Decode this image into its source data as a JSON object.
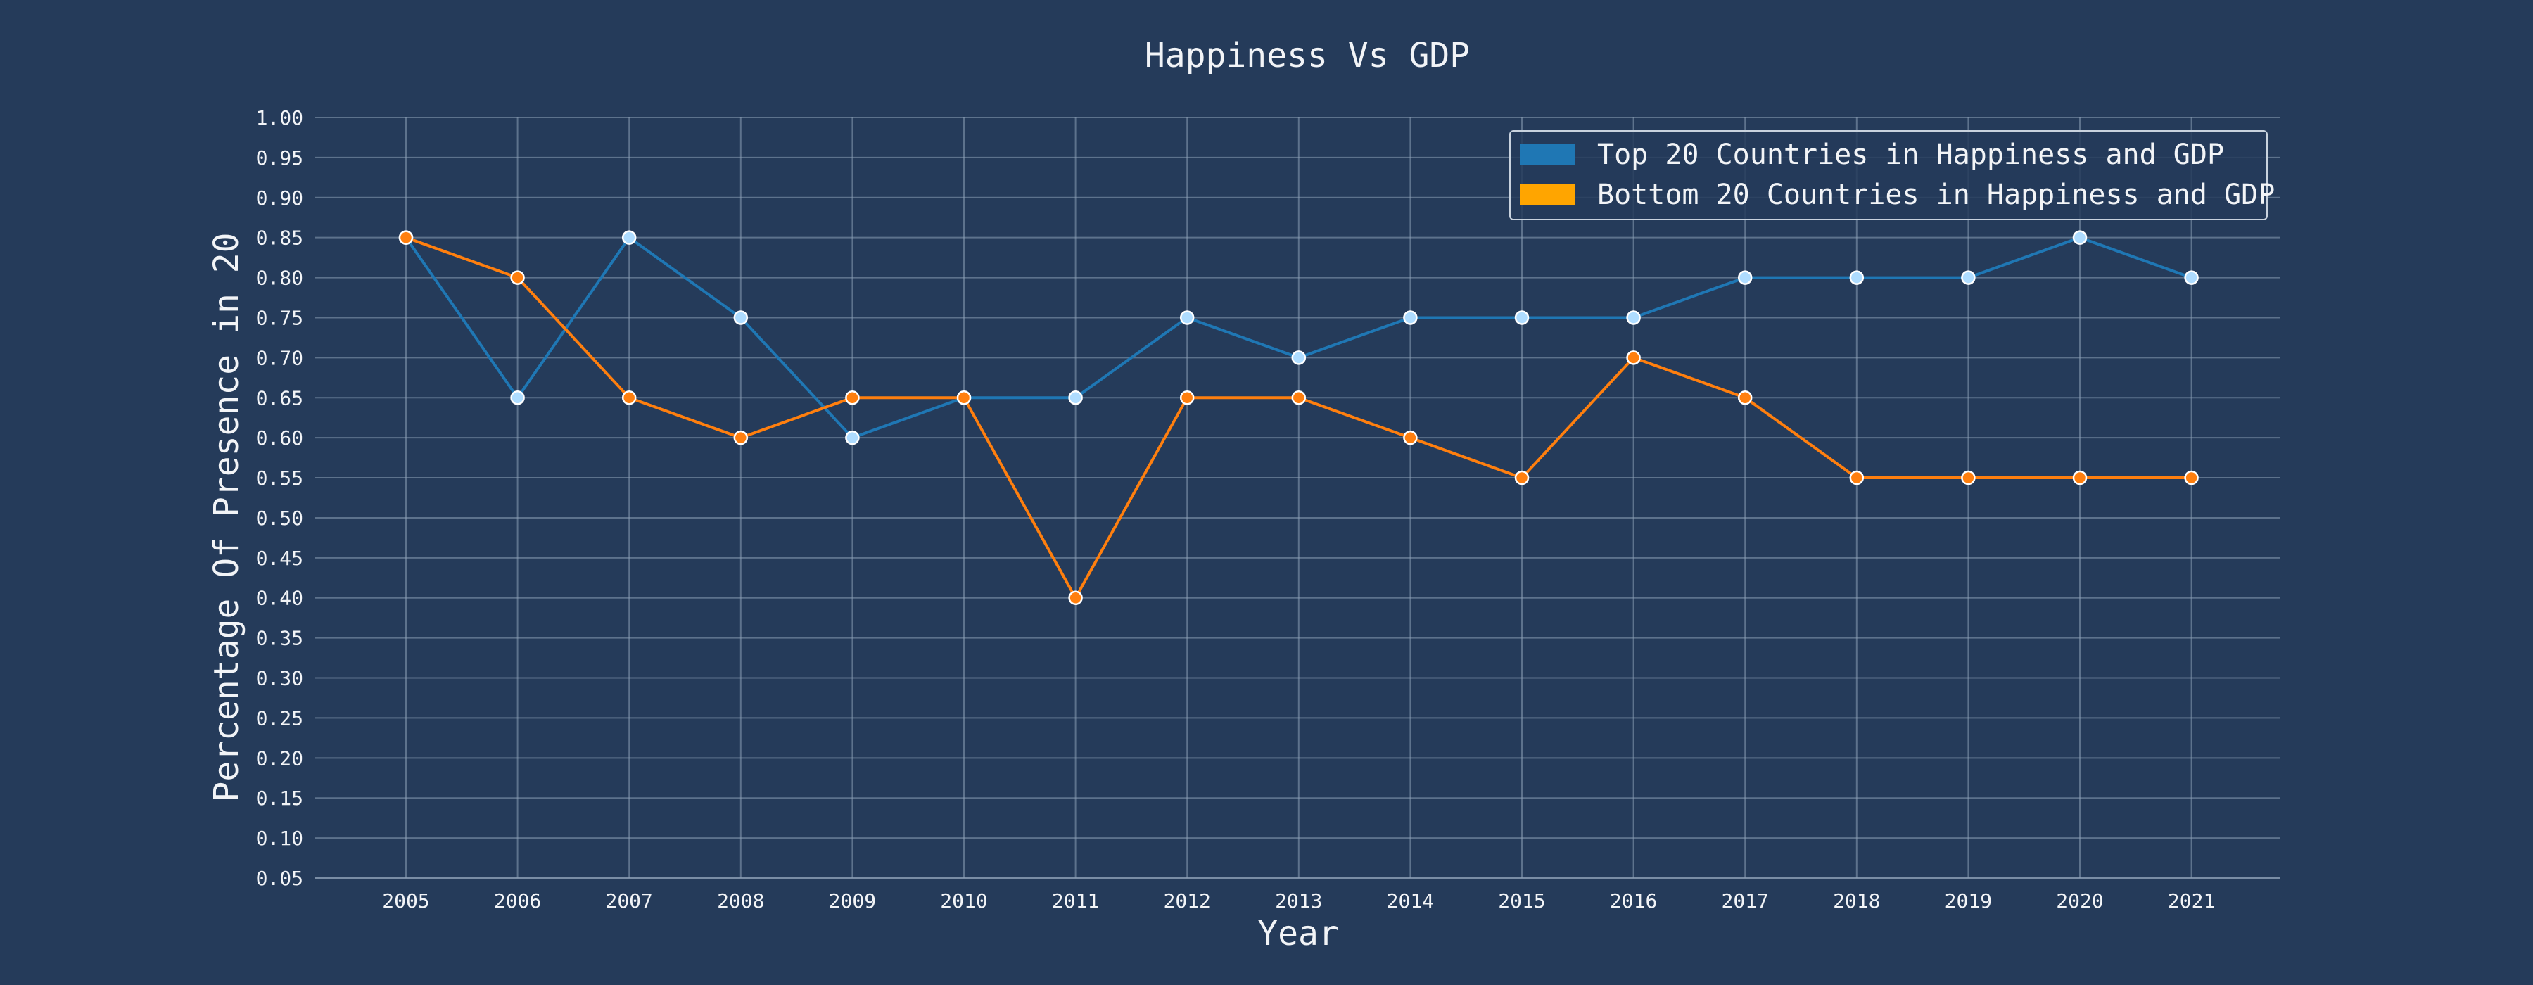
{
  "chart_data": {
    "type": "line",
    "title": "Happiness Vs GDP",
    "xlabel": "Year",
    "ylabel": "Percentage Of Presence in 20",
    "x": [
      "2005",
      "2006",
      "2007",
      "2008",
      "2009",
      "2010",
      "2011",
      "2012",
      "2013",
      "2014",
      "2015",
      "2016",
      "2017",
      "2018",
      "2019",
      "2020",
      "2021"
    ],
    "series": [
      {
        "name": "Top 20 Countries in Happiness and GDP",
        "color": "#1f77b4",
        "marker_color": "#aedcff",
        "values": [
          0.85,
          0.65,
          0.85,
          0.75,
          0.6,
          0.65,
          0.65,
          0.75,
          0.7,
          0.75,
          0.75,
          0.75,
          0.8,
          0.8,
          0.8,
          0.85,
          0.8
        ]
      },
      {
        "name": "Bottom 20 Countries in Happiness and GDP",
        "color": "#ff7f0e",
        "legend_color": "#ffa500",
        "marker_color": "#ff7f0e",
        "values": [
          0.85,
          0.8,
          0.65,
          0.6,
          0.65,
          0.65,
          0.4,
          0.65,
          0.65,
          0.6,
          0.55,
          0.7,
          0.65,
          0.55,
          0.55,
          0.55,
          0.55
        ]
      }
    ],
    "ylim": [
      0.05,
      1.0
    ],
    "yticks": [
      "0.05",
      "0.10",
      "0.15",
      "0.20",
      "0.25",
      "0.30",
      "0.35",
      "0.40",
      "0.45",
      "0.50",
      "0.55",
      "0.60",
      "0.65",
      "0.70",
      "0.75",
      "0.80",
      "0.85",
      "0.90",
      "0.95",
      "1.00"
    ],
    "grid": true,
    "legend_position": "top-right",
    "background_color": "#253b5a",
    "grid_color": "#8da0b6",
    "text_color": "#f2f4f7"
  }
}
